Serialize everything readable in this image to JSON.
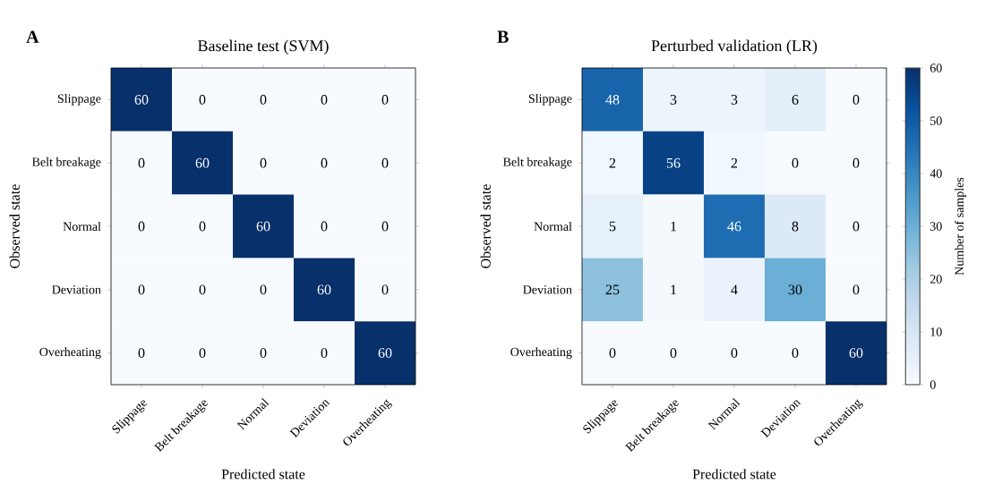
{
  "chart_data": [
    {
      "type": "heatmap",
      "title": "Baseline test (SVM)",
      "annotations": [
        "A"
      ],
      "xlabel": "Predicted state",
      "ylabel": "Observed state",
      "categories": [
        "Slippage",
        "Belt breakage",
        "Normal",
        "Deviation",
        "Overheating"
      ],
      "y_categories": [
        "Slippage",
        "Belt breakage",
        "Normal",
        "Deviation",
        "Overheating"
      ],
      "data_labels": true,
      "cells": [
        [
          60,
          0,
          0,
          0,
          0
        ],
        [
          0,
          60,
          0,
          0,
          0
        ],
        [
          0,
          0,
          60,
          0,
          0
        ],
        [
          0,
          0,
          0,
          60,
          0
        ],
        [
          0,
          0,
          0,
          0,
          60
        ]
      ]
    },
    {
      "type": "heatmap",
      "title": "Perturbed validation (LR)",
      "annotations": [
        "B"
      ],
      "xlabel": "Predicted state",
      "ylabel": "Observed state",
      "clabel": "Number of samples",
      "categories": [
        "Slippage",
        "Belt breakage",
        "Normal",
        "Deviation",
        "Overheating"
      ],
      "y_categories": [
        "Slippage",
        "Belt breakage",
        "Normal",
        "Deviation",
        "Overheating"
      ],
      "data_labels": true,
      "cells": [
        [
          48,
          3,
          3,
          6,
          0
        ],
        [
          2,
          56,
          2,
          0,
          0
        ],
        [
          5,
          1,
          46,
          8,
          0
        ],
        [
          25,
          1,
          4,
          30,
          0
        ],
        [
          0,
          0,
          0,
          0,
          60
        ]
      ],
      "clim": [
        0,
        60
      ],
      "cticks": [
        0,
        10,
        20,
        30,
        40,
        50,
        60
      ]
    }
  ]
}
